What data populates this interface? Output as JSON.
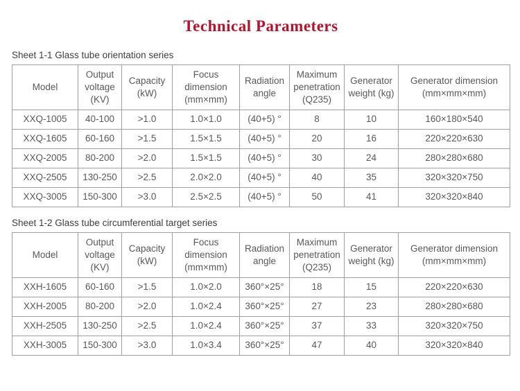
{
  "page": {
    "title": "Technical Parameters",
    "title_color": "#b5122c",
    "border_color": "#9e9e9e",
    "text_color": "#585858"
  },
  "sheet1": {
    "caption": "Sheet 1-1 Glass tube orientation series",
    "columns": [
      "Model",
      "Output voltage (KV)",
      "Capacity (kW)",
      "Focus dimension (mm×mm)",
      "Radiation angle",
      "Maximum penetration (Q235)",
      "Generator weight (kg)",
      "Generator dimension (mm×mm×mm)"
    ],
    "rows": [
      [
        "XXQ-1005",
        "40-100",
        ">1.0",
        "1.0×1.0",
        "(40+5) °",
        "8",
        "10",
        "160×180×540"
      ],
      [
        "XXQ-1605",
        "60-160",
        ">1.5",
        "1.5×1.5",
        "(40+5) °",
        "20",
        "16",
        "220×220×630"
      ],
      [
        "XXQ-2005",
        "80-200",
        ">2.0",
        "1.5×1.5",
        "(40+5) °",
        "30",
        "24",
        "280×280×680"
      ],
      [
        "XXQ-2505",
        "130-250",
        ">2.5",
        "2.0×2.0",
        "(40+5) °",
        "40",
        "35",
        "320×320×750"
      ],
      [
        "XXQ-3005",
        "150-300",
        ">3.0",
        "2.5×2.5",
        "(40+5) °",
        "50",
        "41",
        "320×320×840"
      ]
    ]
  },
  "sheet2": {
    "caption": "Sheet 1-2 Glass tube circumferential target series",
    "columns": [
      "Model",
      "Output voltage (KV)",
      "Capacity (kW)",
      "Focus dimension (mm×mm)",
      "Radiation angle",
      "Maximum penetration (Q235)",
      "Generator weight (kg)",
      "Generator dimension (mm×mm×mm)"
    ],
    "rows": [
      [
        "XXH-1605",
        "60-160",
        ">1.5",
        "1.0×2.0",
        "360°×25°",
        "18",
        "15",
        "220×220×630"
      ],
      [
        "XXH-2005",
        "80-200",
        ">2.0",
        "1.0×2.4",
        "360°×25°",
        "27",
        "23",
        "280×280×680"
      ],
      [
        "XXH-2505",
        "130-250",
        ">2.5",
        "1.0×2.4",
        "360°×25°",
        "37",
        "33",
        "320×320×750"
      ],
      [
        "XXH-3005",
        "150-300",
        ">3.0",
        "1.0×3.4",
        "360°×25°",
        "47",
        "40",
        "320×320×840"
      ]
    ]
  }
}
